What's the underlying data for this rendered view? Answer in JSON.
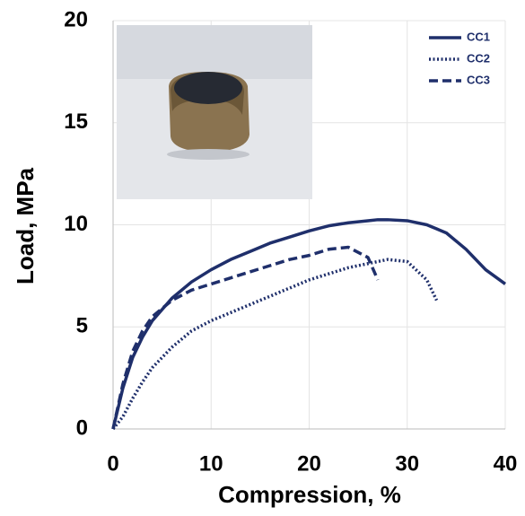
{
  "chart_data": {
    "type": "line",
    "x_label": "Compression, %",
    "y_label": "Load, MPa",
    "x": [
      0,
      1,
      2,
      3,
      4,
      6,
      8,
      10,
      12,
      14,
      16,
      18,
      20,
      22,
      24,
      26,
      27,
      28,
      30,
      32,
      33,
      34,
      36,
      38,
      40
    ],
    "series": [
      {
        "name": "CC1",
        "color": "#1f2f6b",
        "style": "solid",
        "values": [
          0,
          2.0,
          3.5,
          4.5,
          5.3,
          6.4,
          7.2,
          7.8,
          8.3,
          8.7,
          9.1,
          9.4,
          9.7,
          9.95,
          10.1,
          10.2,
          10.25,
          10.25,
          10.2,
          10.0,
          9.8,
          9.6,
          8.8,
          7.8,
          7.1
        ]
      },
      {
        "name": "CC2",
        "color": "#1f2f6b",
        "style": "dotted",
        "values": [
          0,
          0.6,
          1.5,
          2.3,
          3.0,
          4.0,
          4.8,
          5.3,
          5.7,
          6.1,
          6.5,
          6.9,
          7.3,
          7.6,
          7.9,
          8.1,
          8.2,
          8.3,
          8.2,
          7.3,
          6.3,
          null,
          null,
          null,
          null
        ]
      },
      {
        "name": "CC3",
        "color": "#1f2f6b",
        "style": "dashed",
        "values": [
          0,
          2.2,
          3.8,
          4.8,
          5.5,
          6.3,
          6.8,
          7.1,
          7.4,
          7.7,
          8.0,
          8.3,
          8.5,
          8.8,
          8.9,
          8.4,
          7.3,
          null,
          null,
          null,
          null,
          null,
          null,
          null,
          null
        ]
      }
    ],
    "xlim": [
      0,
      40
    ],
    "xticks": [
      0,
      10,
      20,
      30,
      40
    ],
    "ylim": [
      0,
      20
    ],
    "yticks": [
      0,
      5,
      10,
      15,
      20
    ],
    "grid": true,
    "legend": "top-right"
  }
}
